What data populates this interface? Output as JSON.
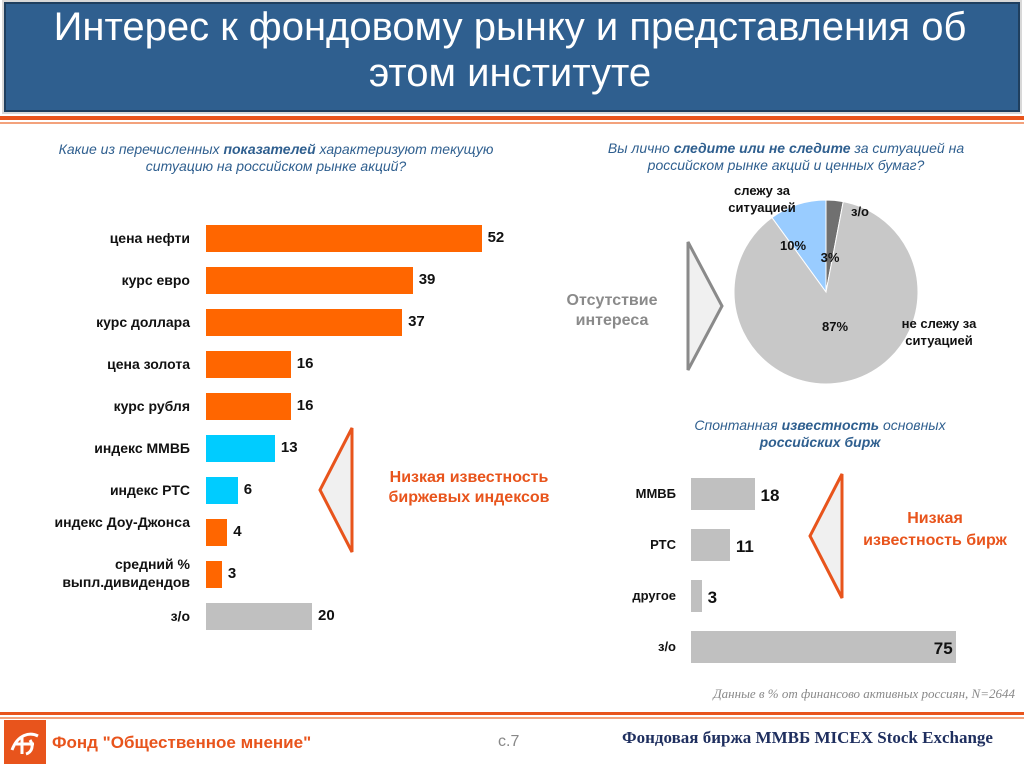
{
  "title": "Интерес к фондовому рынку и представления об этом институте",
  "left_question": {
    "pre": "Какие из перечисленных ",
    "bold": "показателей",
    "post": " характеризуют текущую ситуацию на российском рынке акций?"
  },
  "right_question": {
    "pre": "Вы лично ",
    "bold": "следите или не следите",
    "post": " за ситуацией на российском рынке акций и ценных бумаг?"
  },
  "exchanges_question": {
    "pre": "Спонтанная ",
    "bold": "известность",
    "mid": " основных ",
    "bold2": "российских бирж"
  },
  "callouts": {
    "indices": "Низкая известность биржевых индексов",
    "exchanges": "Низкая известность бирж",
    "no_interest": "Отсутствие интереса"
  },
  "chart_data": [
    {
      "type": "bar",
      "orientation": "horizontal",
      "categories": [
        "цена нефти",
        "курс евро",
        "курс доллара",
        "цена золота",
        "курс рубля",
        "индекс ММВБ",
        "индекс РТС",
        "индекс Доу-Джонса",
        "средний % выпл.дивидендов",
        "з/о"
      ],
      "values": [
        52,
        39,
        37,
        16,
        16,
        13,
        6,
        4,
        3,
        20
      ],
      "colors": [
        "#ff6600",
        "#ff6600",
        "#ff6600",
        "#ff6600",
        "#ff6600",
        "#00ccff",
        "#00ccff",
        "#ff6600",
        "#ff6600",
        "#c0c0c0"
      ]
    },
    {
      "type": "pie",
      "slices": [
        {
          "label": "слежу за ситуацией",
          "value": 10,
          "pct": "10%",
          "color": "#99ccff"
        },
        {
          "label": "з/о",
          "value": 3,
          "pct": "3%",
          "color": "#707070"
        },
        {
          "label": "не слежу за ситуацией",
          "value": 87,
          "pct": "87%",
          "color": "#c8c8c8"
        }
      ]
    },
    {
      "type": "bar",
      "orientation": "horizontal",
      "categories": [
        "ММВБ",
        "РТС",
        "другое",
        "з/о"
      ],
      "values": [
        18,
        11,
        3,
        75
      ],
      "color": "#c0c0c0"
    }
  ],
  "footnote": "Данные в % от финансово активных россиян, N=2644",
  "footer": {
    "org": "Фонд \"Общественное мнение\"",
    "page": "с.7",
    "exchange_logo": "Фондовая биржа ММВБ  MICEX Stock Exchange"
  },
  "icons": {
    "fond": "fom-logo-icon",
    "micex": "micex-logo-icon"
  }
}
